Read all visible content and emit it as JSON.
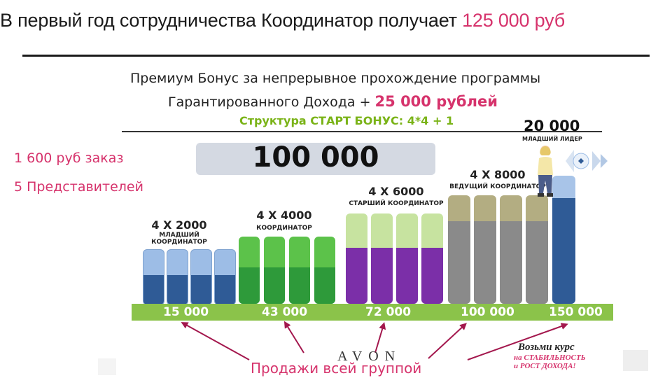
{
  "heading": {
    "prefix": "В первый год сотрудничества Координатор получает ",
    "amount": "125 000 руб"
  },
  "bonus": {
    "line1": "Премиум Бонус за непрерывное прохождение программы",
    "line2_prefix": "Гарантированного Дохода + ",
    "line2_amount": "25 000 рублей",
    "structure": "Структура СТАРТ БОНУС: 4*4 + 1"
  },
  "big_number": "100 000",
  "side": {
    "order": "1 600 руб заказ",
    "reps": "5 Представителей"
  },
  "groups": [
    {
      "label": "4 X 2000",
      "title_line1": "МЛАДШИЙ",
      "title_line2": "КООРДИНАТОР"
    },
    {
      "label": "4 X 4000",
      "title_line1": "КООРДИНАТОР",
      "title_line2": ""
    },
    {
      "label": "4 X 6000",
      "title_line1": "СТАРШИЙ КООРДИНАТОР",
      "title_line2": ""
    },
    {
      "label": "4 X 8000",
      "title_line1": "ВЕДУЩИЙ КООРДИНАТОР",
      "title_line2": ""
    }
  ],
  "leader": {
    "amount": "20 000",
    "title": "МЛАДШИЙ ЛИДЕР"
  },
  "strip_values": [
    "15 000",
    "43 000",
    "72 000",
    "100 000",
    "150 000"
  ],
  "sales_label": "Продажи всей группой",
  "logo_text": "AVON",
  "course": {
    "title": "Возьми курс",
    "sub1": "на СТАБИЛЬНОСТЬ",
    "sub2": "и РОСТ ДОХОДА!"
  },
  "colors": {
    "pink": "#d6336c",
    "blue_light": "#9dbde6",
    "blue_dark": "#2f5b96",
    "green_light": "#5cc24a",
    "green_dark": "#2e9a3a",
    "lime_light": "#c7e3a0",
    "purple": "#7b2fa8",
    "olive": "#b3ad82",
    "grey": "#8a8a8a",
    "leader_light": "#a8c4e8",
    "leader_dark": "#2f5b96",
    "strip": "#8bc34a"
  }
}
